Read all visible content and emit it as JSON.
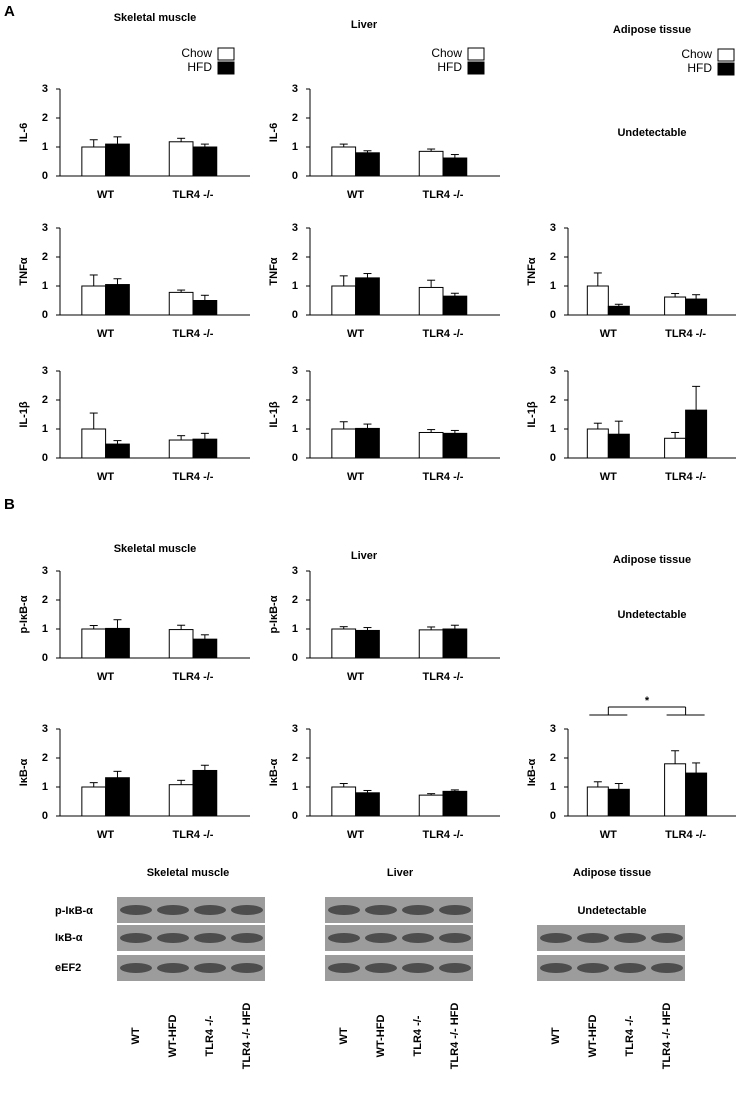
{
  "sections": [
    {
      "label": "A",
      "columns": [
        "Skeletal muscle",
        "Liver",
        "Adipose tissue"
      ]
    },
    {
      "label": "B",
      "columns": [
        "Skeletal muscle",
        "Liver",
        "Adipose tissue"
      ]
    }
  ],
  "undetectable": "Undetectable",
  "chart_data": [
    {
      "type": "bar",
      "ylabel": "IL-6",
      "categories": [
        "WT",
        "TLR4 -/-"
      ],
      "ylim": [
        0,
        3
      ],
      "yticks": [
        0,
        1,
        2,
        3
      ],
      "legend": "upper right",
      "series": [
        {
          "name": "Chow",
          "color": "#ffffff",
          "values": [
            1.0,
            1.18
          ],
          "errors": [
            0.25,
            0.12
          ]
        },
        {
          "name": "HFD",
          "color": "#000000",
          "values": [
            1.1,
            1.0
          ],
          "errors": [
            0.25,
            0.1
          ]
        }
      ]
    },
    {
      "type": "bar",
      "ylabel": "IL-6",
      "categories": [
        "WT",
        "TLR4 -/-"
      ],
      "ylim": [
        0,
        3
      ],
      "yticks": [
        0,
        1,
        2,
        3
      ],
      "legend": "upper right",
      "series": [
        {
          "name": "Chow",
          "color": "#ffffff",
          "values": [
            1.0,
            0.85
          ],
          "errors": [
            0.1,
            0.08
          ]
        },
        {
          "name": "HFD",
          "color": "#000000",
          "values": [
            0.8,
            0.62
          ],
          "errors": [
            0.07,
            0.12
          ]
        }
      ]
    },
    {
      "type": "bar",
      "ylabel": "TNFα",
      "categories": [
        "WT",
        "TLR4 -/-"
      ],
      "ylim": [
        0,
        3
      ],
      "yticks": [
        0,
        1,
        2,
        3
      ],
      "series": [
        {
          "name": "Chow",
          "color": "#ffffff",
          "values": [
            1.0,
            0.78
          ],
          "errors": [
            0.38,
            0.08
          ]
        },
        {
          "name": "HFD",
          "color": "#000000",
          "values": [
            1.05,
            0.5
          ],
          "errors": [
            0.2,
            0.18
          ]
        }
      ]
    },
    {
      "type": "bar",
      "ylabel": "TNFα",
      "categories": [
        "WT",
        "TLR4 -/-"
      ],
      "ylim": [
        0,
        3
      ],
      "yticks": [
        0,
        1,
        2,
        3
      ],
      "series": [
        {
          "name": "Chow",
          "color": "#ffffff",
          "values": [
            1.0,
            0.95
          ],
          "errors": [
            0.35,
            0.25
          ]
        },
        {
          "name": "HFD",
          "color": "#000000",
          "values": [
            1.28,
            0.65
          ],
          "errors": [
            0.15,
            0.1
          ]
        }
      ]
    },
    {
      "type": "bar",
      "ylabel": "TNFα",
      "categories": [
        "WT",
        "TLR4 -/-"
      ],
      "ylim": [
        0,
        3
      ],
      "yticks": [
        0,
        1,
        2,
        3
      ],
      "series": [
        {
          "name": "Chow",
          "color": "#ffffff",
          "values": [
            1.0,
            0.62
          ],
          "errors": [
            0.45,
            0.12
          ]
        },
        {
          "name": "HFD",
          "color": "#000000",
          "values": [
            0.3,
            0.55
          ],
          "errors": [
            0.07,
            0.15
          ]
        }
      ]
    },
    {
      "type": "bar",
      "ylabel": "IL-1β",
      "categories": [
        "WT",
        "TLR4 -/-"
      ],
      "ylim": [
        0,
        3
      ],
      "yticks": [
        0,
        1,
        2,
        3
      ],
      "series": [
        {
          "name": "Chow",
          "color": "#ffffff",
          "values": [
            1.0,
            0.62
          ],
          "errors": [
            0.55,
            0.15
          ]
        },
        {
          "name": "HFD",
          "color": "#000000",
          "values": [
            0.48,
            0.65
          ],
          "errors": [
            0.12,
            0.2
          ]
        }
      ]
    },
    {
      "type": "bar",
      "ylabel": "IL-1β",
      "categories": [
        "WT",
        "TLR4 -/-"
      ],
      "ylim": [
        0,
        3
      ],
      "yticks": [
        0,
        1,
        2,
        3
      ],
      "series": [
        {
          "name": "Chow",
          "color": "#ffffff",
          "values": [
            1.0,
            0.88
          ],
          "errors": [
            0.25,
            0.1
          ]
        },
        {
          "name": "HFD",
          "color": "#000000",
          "values": [
            1.02,
            0.85
          ],
          "errors": [
            0.15,
            0.1
          ]
        }
      ]
    },
    {
      "type": "bar",
      "ylabel": "IL-1β",
      "categories": [
        "WT",
        "TLR4 -/-"
      ],
      "ylim": [
        0,
        3
      ],
      "yticks": [
        0,
        1,
        2,
        3
      ],
      "series": [
        {
          "name": "Chow",
          "color": "#ffffff",
          "values": [
            1.0,
            0.68
          ],
          "errors": [
            0.2,
            0.2
          ]
        },
        {
          "name": "HFD",
          "color": "#000000",
          "values": [
            0.82,
            1.65
          ],
          "errors": [
            0.45,
            0.82
          ]
        }
      ]
    },
    {
      "type": "bar",
      "ylabel": "p-IκB-α",
      "categories": [
        "WT",
        "TLR4 -/-"
      ],
      "ylim": [
        0,
        3
      ],
      "yticks": [
        0,
        1,
        2,
        3
      ],
      "series": [
        {
          "name": "Chow",
          "color": "#ffffff",
          "values": [
            1.0,
            0.98
          ],
          "errors": [
            0.12,
            0.15
          ]
        },
        {
          "name": "HFD",
          "color": "#000000",
          "values": [
            1.02,
            0.65
          ],
          "errors": [
            0.3,
            0.15
          ]
        }
      ]
    },
    {
      "type": "bar",
      "ylabel": "p-IκB-α",
      "categories": [
        "WT",
        "TLR4 -/-"
      ],
      "ylim": [
        0,
        3
      ],
      "yticks": [
        0,
        1,
        2,
        3
      ],
      "series": [
        {
          "name": "Chow",
          "color": "#ffffff",
          "values": [
            1.0,
            0.97
          ],
          "errors": [
            0.08,
            0.1
          ]
        },
        {
          "name": "HFD",
          "color": "#000000",
          "values": [
            0.95,
            1.0
          ],
          "errors": [
            0.1,
            0.13
          ]
        }
      ]
    },
    {
      "type": "bar",
      "ylabel": "IκB-α",
      "categories": [
        "WT",
        "TLR4 -/-"
      ],
      "ylim": [
        0,
        3
      ],
      "yticks": [
        0,
        1,
        2,
        3
      ],
      "series": [
        {
          "name": "Chow",
          "color": "#ffffff",
          "values": [
            1.0,
            1.08
          ],
          "errors": [
            0.15,
            0.15
          ]
        },
        {
          "name": "HFD",
          "color": "#000000",
          "values": [
            1.32,
            1.57
          ],
          "errors": [
            0.22,
            0.18
          ]
        }
      ]
    },
    {
      "type": "bar",
      "ylabel": "IκB-α",
      "categories": [
        "WT",
        "TLR4 -/-"
      ],
      "ylim": [
        0,
        3
      ],
      "yticks": [
        0,
        1,
        2,
        3
      ],
      "series": [
        {
          "name": "Chow",
          "color": "#ffffff",
          "values": [
            1.0,
            0.72
          ],
          "errors": [
            0.12,
            0.05
          ]
        },
        {
          "name": "HFD",
          "color": "#000000",
          "values": [
            0.8,
            0.85
          ],
          "errors": [
            0.08,
            0.05
          ]
        }
      ]
    },
    {
      "type": "bar",
      "ylabel": "IκB-α",
      "categories": [
        "WT",
        "TLR4 -/-"
      ],
      "ylim": [
        0,
        3
      ],
      "yticks": [
        0,
        1,
        2,
        3
      ],
      "significance": "*",
      "series": [
        {
          "name": "Chow",
          "color": "#ffffff",
          "values": [
            1.0,
            1.8
          ],
          "errors": [
            0.18,
            0.45
          ]
        },
        {
          "name": "HFD",
          "color": "#000000",
          "values": [
            0.92,
            1.48
          ],
          "errors": [
            0.2,
            0.35
          ]
        }
      ]
    }
  ],
  "blots": {
    "rows": [
      "p-IκB-α",
      "IκB-α",
      "eEF2"
    ],
    "lanes": [
      "WT",
      "WT-HFD",
      "TLR4 -/-",
      "TLR4 -/- HFD"
    ]
  }
}
